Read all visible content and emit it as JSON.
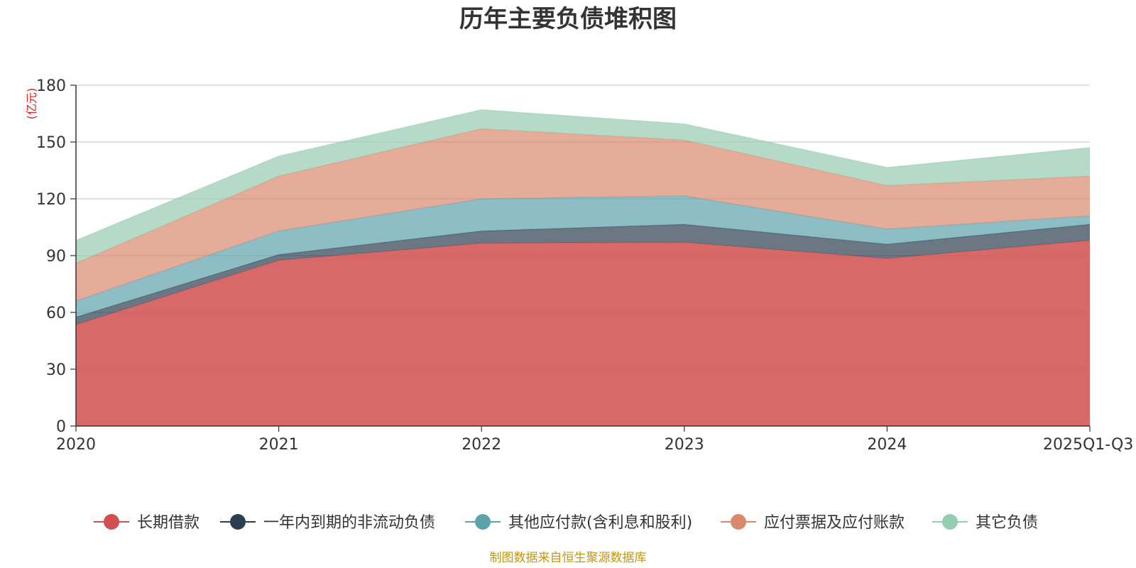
{
  "chart_data": {
    "type": "area",
    "stacked": true,
    "title": "历年主要负债堆积图",
    "unit_label": "(亿元)",
    "categories": [
      "2020",
      "2021",
      "2022",
      "2023",
      "2024",
      "2025Q1-Q3"
    ],
    "ylim": [
      0,
      180
    ],
    "yticks": [
      0,
      30,
      60,
      90,
      120,
      150,
      180
    ],
    "grid": true,
    "legend_position": "bottom",
    "series": [
      {
        "name": "长期借款",
        "color": "#d0504f",
        "values": [
          53.5,
          87.5,
          96.5,
          97,
          88.5,
          98
        ]
      },
      {
        "name": "一年内到期的非流动负债",
        "color": "#2c3e50",
        "values": [
          4,
          3,
          6.5,
          9.5,
          7.5,
          8.5
        ]
      },
      {
        "name": "其他应付款(含利息和股利)",
        "color": "#5ea3ac",
        "values": [
          8.5,
          12.5,
          17,
          15,
          8,
          4.5
        ]
      },
      {
        "name": "应付票据及应付账款",
        "color": "#d9896d",
        "values": [
          20,
          29,
          37,
          29.5,
          23,
          21
        ]
      },
      {
        "name": "其它负债",
        "color": "#96ccb0",
        "values": [
          12,
          10.5,
          10,
          8.5,
          9.5,
          15
        ]
      }
    ],
    "source": "制图数据来自恒生聚源数据库"
  }
}
